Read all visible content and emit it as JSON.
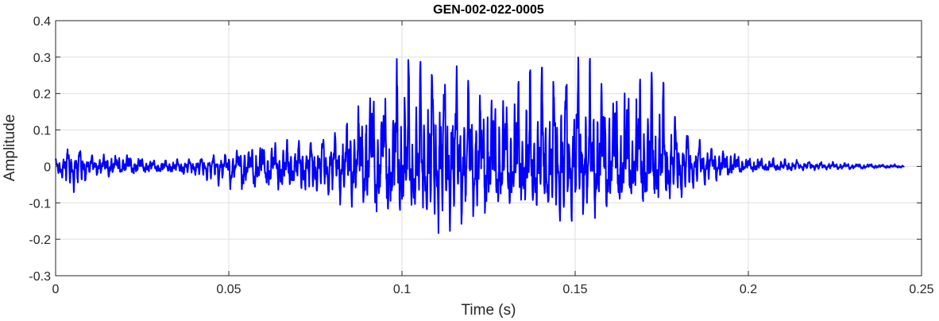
{
  "chart_data": {
    "type": "line",
    "title": "GEN-002-022-0005",
    "xlabel": "Time (s)",
    "ylabel": "Amplitude",
    "xlim": [
      0,
      0.25
    ],
    "ylim": [
      -0.3,
      0.4
    ],
    "xticks": [
      0,
      0.05,
      0.1,
      0.15,
      0.2,
      0.25
    ],
    "xtick_labels": [
      "0",
      "0.05",
      "0.1",
      "0.15",
      "0.2",
      "0.25"
    ],
    "yticks": [
      -0.3,
      -0.2,
      -0.1,
      0,
      0.1,
      0.2,
      0.3,
      0.4
    ],
    "ytick_labels": [
      "-0.3",
      "-0.2",
      "-0.1",
      "0",
      "0.1",
      "0.2",
      "0.3",
      "0.4"
    ],
    "grid": true,
    "line_color": "#0000ff",
    "series": [
      {
        "name": "",
        "x_start": 0,
        "x_end": 0.245,
        "envelope": {
          "x": [
            0,
            0.005,
            0.01,
            0.02,
            0.03,
            0.04,
            0.05,
            0.06,
            0.07,
            0.08,
            0.085,
            0.09,
            0.095,
            0.1,
            0.105,
            0.11,
            0.12,
            0.13,
            0.14,
            0.15,
            0.16,
            0.17,
            0.175,
            0.18,
            0.185,
            0.19,
            0.195,
            0.2,
            0.21,
            0.22,
            0.23,
            0.245
          ],
          "max": [
            0.02,
            0.06,
            0.03,
            0.04,
            0.02,
            0.02,
            0.04,
            0.08,
            0.07,
            0.09,
            0.14,
            0.24,
            0.27,
            0.33,
            0.3,
            0.31,
            0.25,
            0.25,
            0.27,
            0.3,
            0.29,
            0.27,
            0.24,
            0.13,
            0.08,
            0.06,
            0.05,
            0.03,
            0.02,
            0.015,
            0.01,
            0.005
          ],
          "min": [
            -0.03,
            -0.09,
            -0.03,
            -0.03,
            -0.03,
            -0.03,
            -0.07,
            -0.09,
            -0.09,
            -0.1,
            -0.12,
            -0.15,
            -0.19,
            -0.19,
            -0.17,
            -0.2,
            -0.17,
            -0.16,
            -0.17,
            -0.16,
            -0.15,
            -0.15,
            -0.13,
            -0.11,
            -0.06,
            -0.05,
            -0.03,
            -0.02,
            -0.015,
            -0.01,
            -0.01,
            -0.005
          ]
        }
      }
    ]
  }
}
